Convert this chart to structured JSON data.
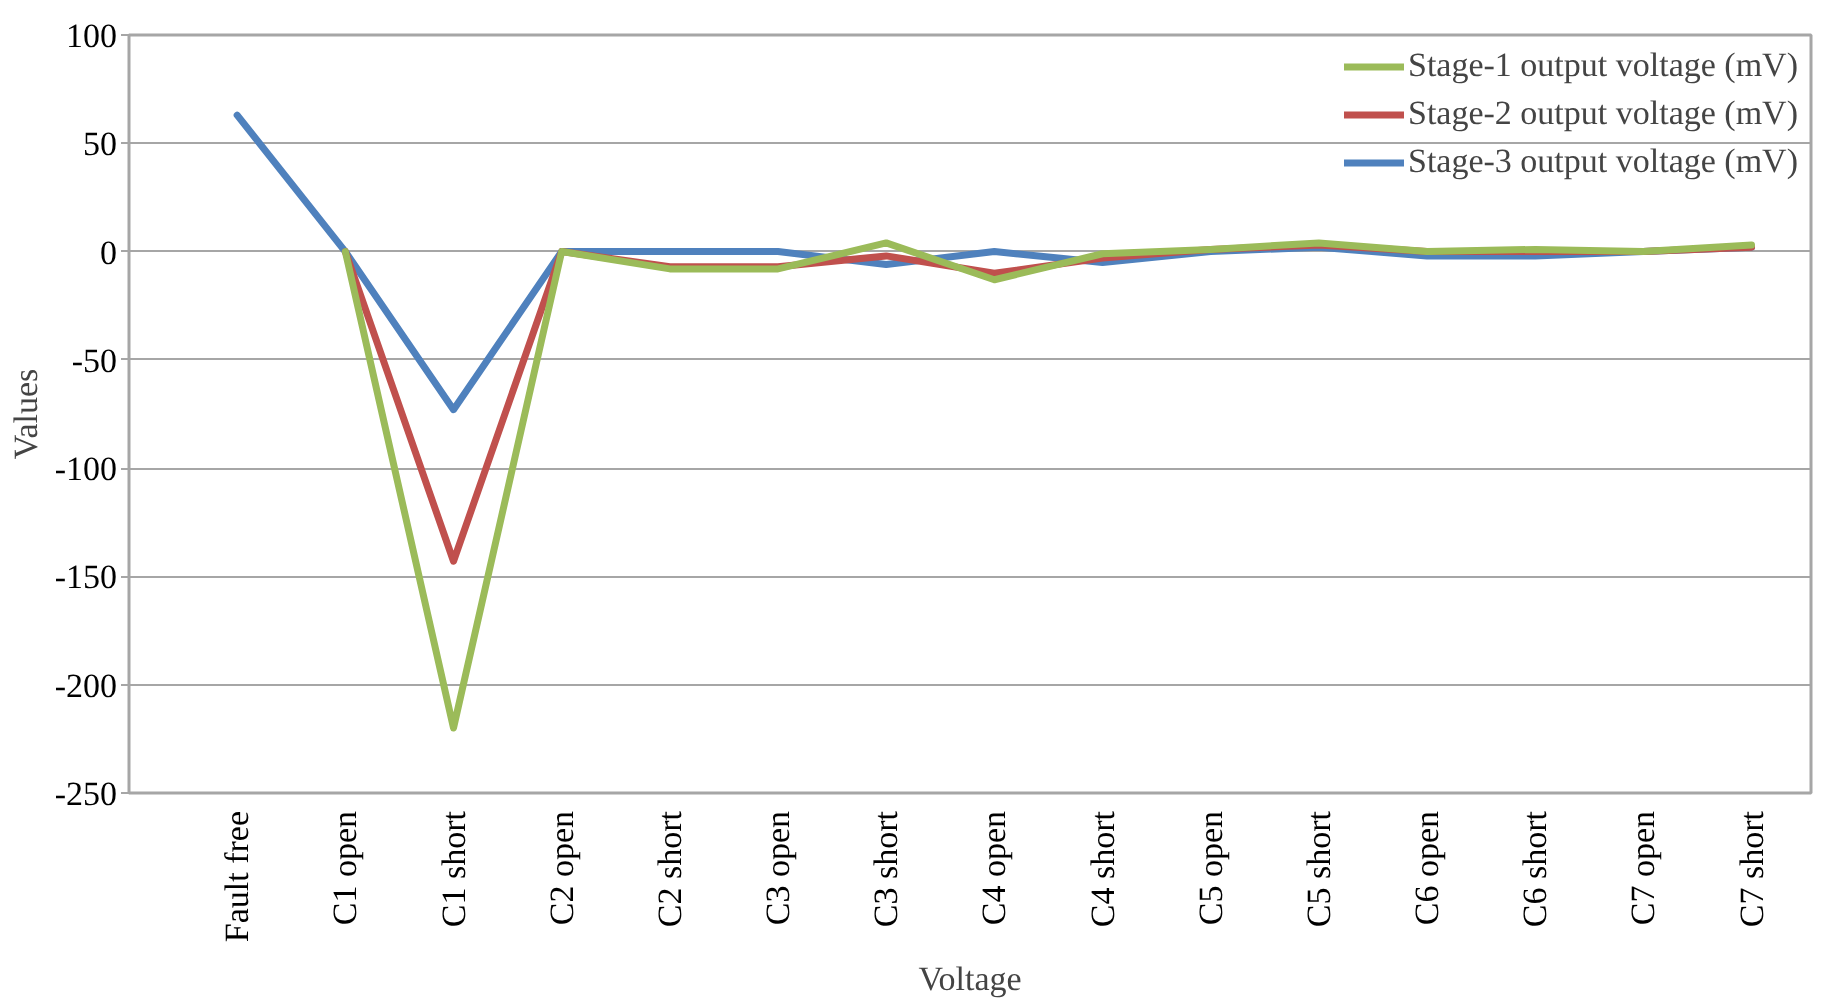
{
  "chart_data": {
    "type": "line",
    "xlabel": "Voltage",
    "ylabel": "Values",
    "categories": [
      "Fault free",
      "C1 open",
      "C1 short",
      "C2 open",
      "C2 short",
      "C3 open",
      "C3 short",
      "C4 open",
      "C4 short",
      "C5 open",
      "C5 short",
      "C6 open",
      "C6 short",
      "C7 open",
      "C7 short"
    ],
    "series": [
      {
        "name": "Stage-1 output voltage (mV)",
        "color": "#9bbb59",
        "values": [
          null,
          0,
          -220,
          0,
          -8,
          -8,
          4,
          -13,
          -1,
          1,
          4,
          0,
          1,
          0,
          3
        ]
      },
      {
        "name": "Stage-2 output voltage (mV)",
        "color": "#c0504d",
        "values": [
          null,
          0,
          -143,
          0,
          -7,
          -7,
          -2,
          -10,
          -3,
          1,
          3,
          0,
          0,
          0,
          2
        ]
      },
      {
        "name": "Stage-3 output voltage (mV)",
        "color": "#4f81bd",
        "values": [
          63,
          0,
          -73,
          0,
          0,
          0,
          -6,
          0,
          -5,
          0,
          2,
          -2,
          -2,
          0,
          2
        ]
      }
    ],
    "ylim": [
      -250,
      100
    ],
    "yticks": [
      -250,
      -200,
      -150,
      -100,
      -50,
      0,
      50,
      100
    ],
    "grid": "y",
    "legend": "top right",
    "line_style": "solid"
  }
}
